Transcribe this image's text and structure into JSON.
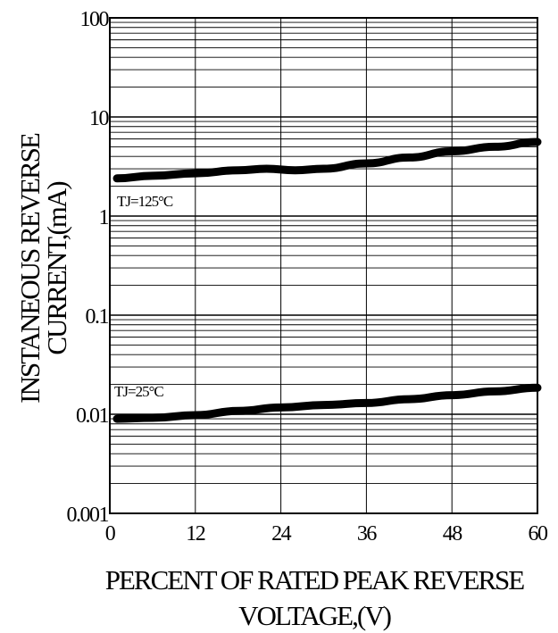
{
  "chart_data": {
    "type": "line",
    "title": "",
    "xlabel_lines": [
      "PERCENT OF RATED PEAK REVERSE",
      "VOLTAGE,(V)"
    ],
    "ylabel_lines": [
      "INSTANEOUS REVERSE",
      "CURRENT,(mA)"
    ],
    "x_ticks": [
      0,
      12,
      24,
      36,
      48,
      60
    ],
    "x_tick_labels": [
      "0",
      "12",
      "24",
      "36",
      "48",
      "60"
    ],
    "xlim": [
      0,
      60
    ],
    "y_scale": "log",
    "y_ticks": [
      0.001,
      0.01,
      0.1,
      1,
      10,
      100
    ],
    "y_tick_labels": [
      "0.001",
      "0.01",
      "0.1",
      "1",
      "10",
      "100"
    ],
    "ylim": [
      0.001,
      100
    ],
    "grid": true,
    "series": [
      {
        "name": "TJ=125°C",
        "color": "#000000",
        "x": [
          1,
          6,
          12,
          18,
          22,
          26,
          30,
          36,
          42,
          48,
          54,
          60
        ],
        "y": [
          2.4,
          2.55,
          2.7,
          2.9,
          3.0,
          2.9,
          3.0,
          3.4,
          3.9,
          4.5,
          5.0,
          5.6
        ]
      },
      {
        "name": "TJ=25°C",
        "color": "#000000",
        "x": [
          1,
          6,
          12,
          18,
          24,
          30,
          36,
          42,
          48,
          54,
          60
        ],
        "y": [
          0.009,
          0.0092,
          0.0098,
          0.0108,
          0.0117,
          0.0124,
          0.013,
          0.0142,
          0.0156,
          0.017,
          0.0185
        ]
      }
    ]
  }
}
